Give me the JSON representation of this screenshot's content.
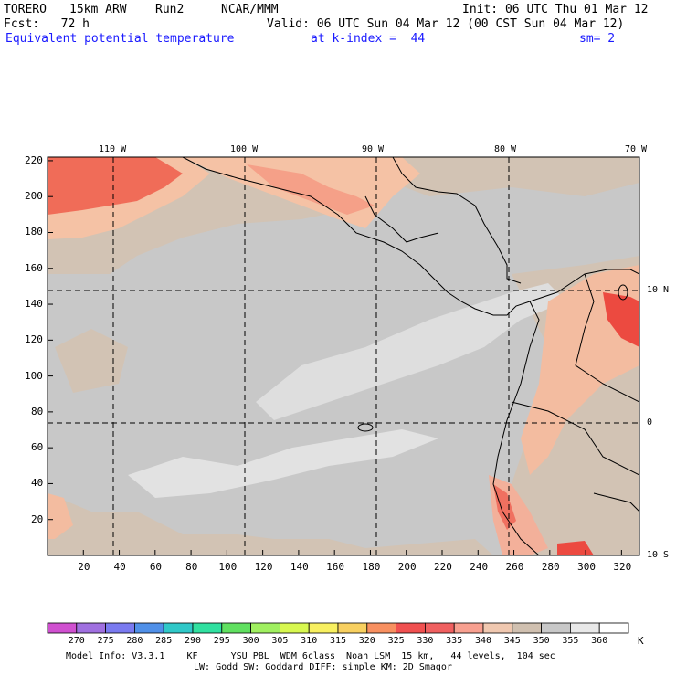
{
  "header": {
    "model": "TORERO",
    "resolution": "15km ARW",
    "run": "Run2",
    "org": "NCAR/MMM",
    "init": "Init: 06 UTC Thu 01 Mar 12",
    "fcst": "Fcst:   72 h",
    "valid": "Valid: 06 UTC Sun 04 Mar 12 (00 CST Sun 04 Mar 12)",
    "field": "Equivalent potential temperature",
    "level": "at k-index =  44",
    "sm": "sm= 2"
  },
  "map": {
    "lon_labels": [
      "110 W",
      "100 W",
      "90 W",
      "80 W",
      "70 W"
    ],
    "lat_labels": [
      "10 N",
      "0",
      "10 S"
    ],
    "x_ticks": [
      "20",
      "40",
      "60",
      "80",
      "100",
      "120",
      "140",
      "160",
      "180",
      "200",
      "220",
      "240",
      "260",
      "280",
      "300",
      "320"
    ],
    "y_ticks": [
      "220",
      "200",
      "180",
      "160",
      "140",
      "120",
      "100",
      "80",
      "60",
      "40",
      "20"
    ]
  },
  "colorbar": {
    "labels": [
      "270",
      "275",
      "280",
      "285",
      "290",
      "295",
      "300",
      "305",
      "310",
      "315",
      "320",
      "325",
      "330",
      "335",
      "340",
      "345",
      "350",
      "355",
      "360"
    ],
    "unit": "K",
    "colors": [
      "#d050d0",
      "#a070e0",
      "#7a7af0",
      "#5090e8",
      "#30c8c8",
      "#30e0a0",
      "#60e060",
      "#a0f060",
      "#d8f850",
      "#f8f060",
      "#f8d060",
      "#f89060",
      "#f05050",
      "#f06060",
      "#f8a090",
      "#f0c8b0",
      "#d0c0b0",
      "#c8c8c8",
      "#e8e8e8",
      "#ffffff"
    ]
  },
  "footer": {
    "line1": "Model Info: V3.3.1    KF      YSU PBL  WDM 6class  Noah LSM  15 km,   44 levels,  104 sec",
    "line2": "LW: Godd SW: Goddard DIFF: simple KM: 2D Smagor"
  }
}
